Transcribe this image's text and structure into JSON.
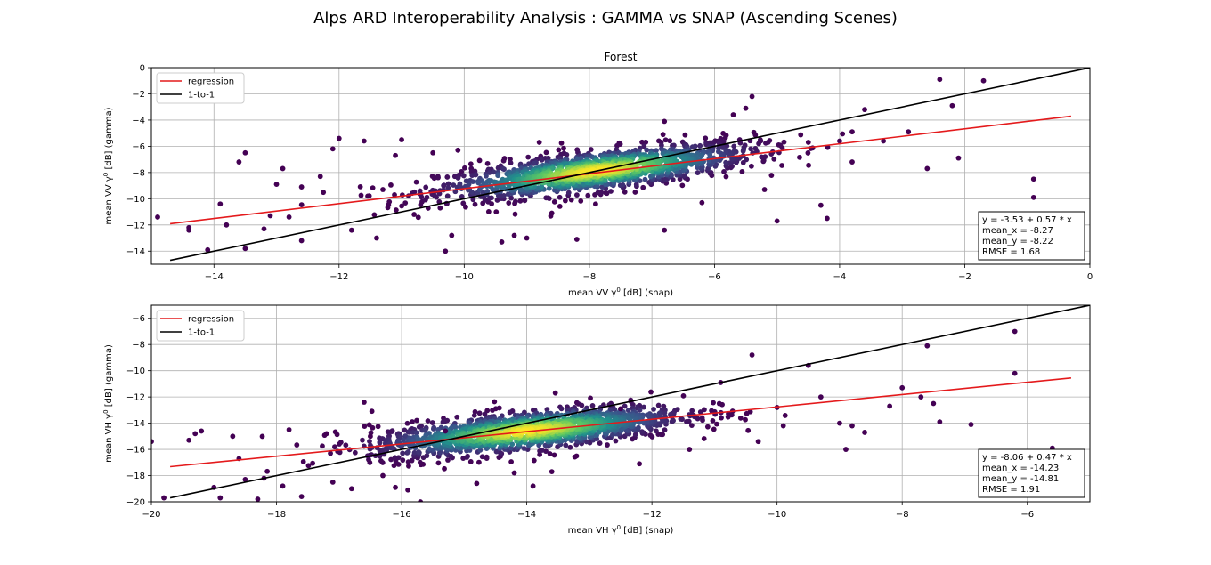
{
  "figure": {
    "suptitle": "Alps ARD Interoperability Analysis : GAMMA vs SNAP (Ascending Scenes)"
  },
  "chart_data": [
    {
      "type": "scatter",
      "title": "Forest",
      "xlabel_prefix": "mean VV γ",
      "xlabel_suffix": " [dB] (snap)",
      "ylabel_prefix": "mean VV γ",
      "ylabel_suffix": " [dB] (gamma)",
      "label_superscript": "0",
      "xlim": [
        -15,
        0
      ],
      "ylim": [
        -15,
        0
      ],
      "xticks": [
        -14,
        -12,
        -10,
        -8,
        -6,
        -4,
        -2,
        0
      ],
      "yticks": [
        -14,
        -12,
        -10,
        -8,
        -6,
        -4,
        -2,
        0
      ],
      "grid": true,
      "legend": {
        "placement": "top-left",
        "entries": [
          "regression",
          "1-to-1"
        ]
      },
      "regression": {
        "intercept": -3.53,
        "slope": 0.57,
        "x_range": [
          -14.7,
          -0.3
        ],
        "color": "#e41a1c"
      },
      "one_to_one": {
        "x_range": [
          -14.7,
          0
        ],
        "color": "#000000"
      },
      "stats_box": [
        "y = -3.53 + 0.57 * x",
        "mean_x = -8.27",
        "mean_y = -8.22",
        "RMSE = 1.68"
      ],
      "density_center": [
        -7.9,
        -7.9
      ],
      "outliers": [
        [
          -14.9,
          -11.4
        ],
        [
          -14.4,
          -12.2
        ],
        [
          -14.4,
          -12.4
        ],
        [
          -14.1,
          -13.9
        ],
        [
          -13.9,
          -10.4
        ],
        [
          -13.8,
          -12.0
        ],
        [
          -13.6,
          -7.2
        ],
        [
          -13.5,
          -6.5
        ],
        [
          -13.5,
          -13.8
        ],
        [
          -13.2,
          -12.3
        ],
        [
          -13.1,
          -11.3
        ],
        [
          -13.0,
          -8.9
        ],
        [
          -12.9,
          -7.7
        ],
        [
          -12.8,
          -11.4
        ],
        [
          -12.6,
          -9.1
        ],
        [
          -12.6,
          -13.2
        ],
        [
          -12.3,
          -8.3
        ],
        [
          -12.1,
          -6.2
        ],
        [
          -12.0,
          -5.4
        ],
        [
          -11.8,
          -12.4
        ],
        [
          -11.6,
          -5.6
        ],
        [
          -11.4,
          -13.0
        ],
        [
          -11.3,
          -9.3
        ],
        [
          -11.1,
          -6.7
        ],
        [
          -11.0,
          -5.5
        ],
        [
          -10.8,
          -11.2
        ],
        [
          -10.5,
          -6.5
        ],
        [
          -10.3,
          -14.0
        ],
        [
          -10.1,
          -6.3
        ],
        [
          -10.2,
          -12.8
        ],
        [
          -9.4,
          -13.3
        ],
        [
          -9.2,
          -12.8
        ],
        [
          -9.0,
          -13.0
        ],
        [
          -8.8,
          -5.7
        ],
        [
          -8.6,
          -11.1
        ],
        [
          -8.2,
          -13.1
        ],
        [
          -7.9,
          -10.4
        ],
        [
          -6.8,
          -4.1
        ],
        [
          -6.8,
          -12.4
        ],
        [
          -6.2,
          -10.3
        ],
        [
          -5.7,
          -3.6
        ],
        [
          -5.5,
          -3.1
        ],
        [
          -5.4,
          -2.2
        ],
        [
          -5.2,
          -9.3
        ],
        [
          -5.0,
          -11.7
        ],
        [
          -4.5,
          -5.7
        ],
        [
          -4.3,
          -10.5
        ],
        [
          -4.2,
          -11.5
        ],
        [
          -4.0,
          -5.6
        ],
        [
          -3.8,
          -7.2
        ],
        [
          -3.8,
          -4.9
        ],
        [
          -3.6,
          -3.2
        ],
        [
          -3.3,
          -5.6
        ],
        [
          -2.9,
          -4.9
        ],
        [
          -2.6,
          -7.7
        ],
        [
          -2.4,
          -0.9
        ],
        [
          -2.2,
          -2.9
        ],
        [
          -2.1,
          -6.9
        ],
        [
          -1.7,
          -1.0
        ],
        [
          -0.9,
          -8.5
        ],
        [
          -0.9,
          -9.9
        ]
      ]
    },
    {
      "type": "scatter",
      "title": "",
      "xlabel_prefix": "mean VH γ",
      "xlabel_suffix": " [dB] (snap)",
      "ylabel_prefix": "mean VH γ",
      "ylabel_suffix": " [dB] (gamma)",
      "label_superscript": "0",
      "xlim": [
        -20,
        -5
      ],
      "ylim": [
        -20,
        -5
      ],
      "xticks": [
        -20,
        -18,
        -16,
        -14,
        -12,
        -10,
        -8,
        -6
      ],
      "yticks": [
        -20,
        -18,
        -16,
        -14,
        -12,
        -10,
        -8,
        -6
      ],
      "grid": true,
      "legend": {
        "placement": "top-left",
        "entries": [
          "regression",
          "1-to-1"
        ]
      },
      "regression": {
        "intercept": -8.06,
        "slope": 0.47,
        "x_range": [
          -19.7,
          -5.3
        ],
        "color": "#e41a1c"
      },
      "one_to_one": {
        "x_range": [
          -19.7,
          -5
        ],
        "color": "#000000"
      },
      "stats_box": [
        "y = -8.06 + 0.47 * x",
        "mean_x = -14.23",
        "mean_y = -14.81",
        "RMSE = 1.91"
      ],
      "density_center": [
        -14.0,
        -14.6
      ],
      "outliers": [
        [
          -20.0,
          -15.4
        ],
        [
          -19.8,
          -19.7
        ],
        [
          -19.4,
          -15.3
        ],
        [
          -19.3,
          -14.8
        ],
        [
          -19.2,
          -14.6
        ],
        [
          -19.0,
          -18.9
        ],
        [
          -18.9,
          -19.7
        ],
        [
          -18.7,
          -15.0
        ],
        [
          -18.6,
          -16.7
        ],
        [
          -18.5,
          -18.3
        ],
        [
          -18.3,
          -19.8
        ],
        [
          -18.2,
          -18.2
        ],
        [
          -17.9,
          -18.8
        ],
        [
          -17.8,
          -14.5
        ],
        [
          -17.6,
          -19.6
        ],
        [
          -17.2,
          -14.8
        ],
        [
          -17.1,
          -18.5
        ],
        [
          -16.8,
          -19.0
        ],
        [
          -16.6,
          -12.4
        ],
        [
          -16.5,
          -15.0
        ],
        [
          -16.3,
          -18.0
        ],
        [
          -16.1,
          -18.9
        ],
        [
          -15.9,
          -19.1
        ],
        [
          -15.7,
          -20.0
        ],
        [
          -15.3,
          -14.6
        ],
        [
          -14.8,
          -18.6
        ],
        [
          -14.2,
          -17.8
        ],
        [
          -13.9,
          -18.8
        ],
        [
          -13.6,
          -17.7
        ],
        [
          -12.5,
          -12.9
        ],
        [
          -12.2,
          -17.1
        ],
        [
          -11.4,
          -16.0
        ],
        [
          -10.9,
          -10.9
        ],
        [
          -10.4,
          -8.8
        ],
        [
          -10.3,
          -15.4
        ],
        [
          -10.0,
          -12.8
        ],
        [
          -9.9,
          -14.2
        ],
        [
          -9.5,
          -9.6
        ],
        [
          -9.3,
          -12.0
        ],
        [
          -9.0,
          -14.0
        ],
        [
          -8.9,
          -16.0
        ],
        [
          -8.8,
          -14.2
        ],
        [
          -8.6,
          -14.7
        ],
        [
          -8.2,
          -12.7
        ],
        [
          -8.0,
          -11.3
        ],
        [
          -7.7,
          -12.0
        ],
        [
          -7.6,
          -8.1
        ],
        [
          -7.5,
          -12.5
        ],
        [
          -7.4,
          -13.9
        ],
        [
          -6.9,
          -14.1
        ],
        [
          -6.2,
          -7.0
        ],
        [
          -6.2,
          -10.2
        ],
        [
          -5.6,
          -15.9
        ],
        [
          -5.5,
          -17.2
        ]
      ]
    }
  ]
}
